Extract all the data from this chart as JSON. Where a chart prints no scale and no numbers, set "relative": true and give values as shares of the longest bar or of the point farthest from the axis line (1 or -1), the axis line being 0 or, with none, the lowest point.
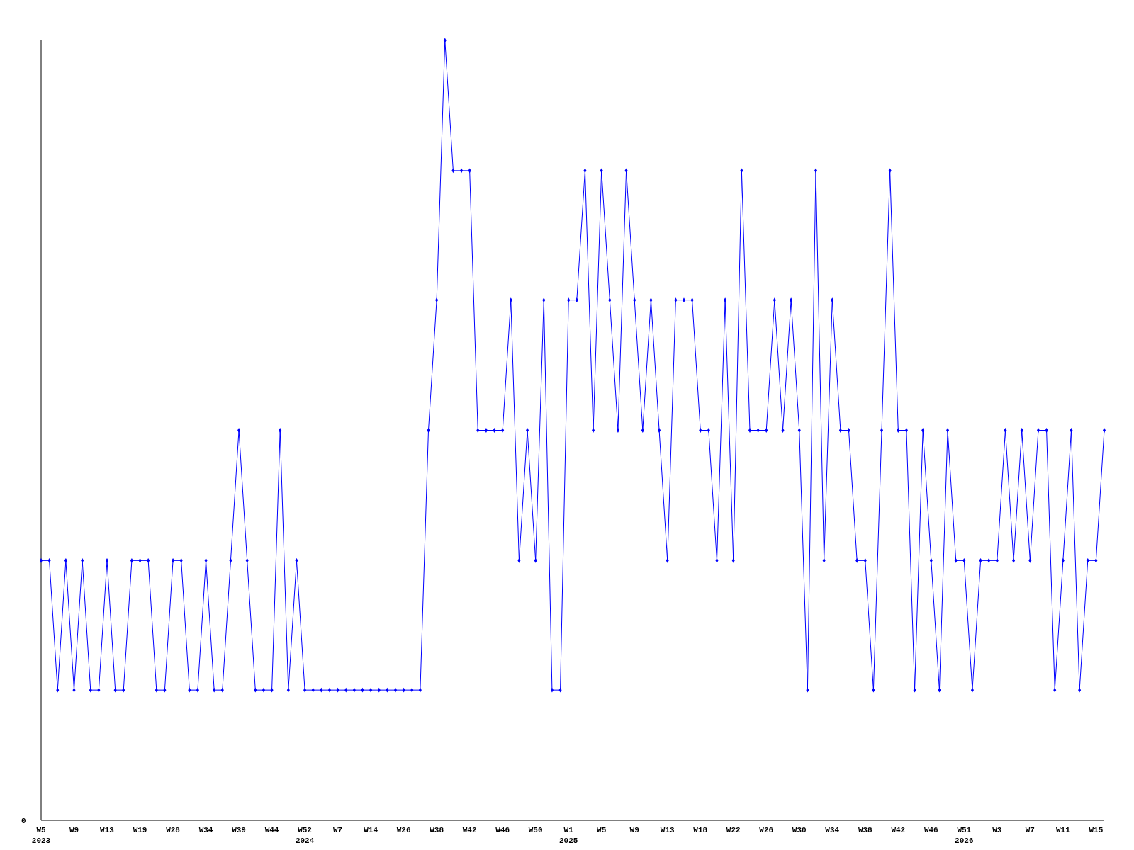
{
  "chart_data": {
    "type": "line",
    "relative": true,
    "marker": "diamond",
    "annotations": [
      "0"
    ],
    "categories": [
      "W5\n2023",
      null,
      null,
      null,
      "W9",
      null,
      null,
      null,
      "W13",
      null,
      null,
      null,
      "W19",
      null,
      null,
      null,
      "W28",
      null,
      null,
      null,
      "W34",
      null,
      null,
      null,
      "W39",
      null,
      null,
      null,
      "W44",
      null,
      null,
      null,
      "W52\n2024",
      null,
      null,
      null,
      "W7",
      null,
      null,
      null,
      "W14",
      null,
      null,
      null,
      "W26",
      null,
      null,
      null,
      "W38",
      null,
      null,
      null,
      "W42",
      null,
      null,
      null,
      "W46",
      null,
      null,
      null,
      "W50",
      null,
      null,
      null,
      "W1\n2025",
      null,
      null,
      null,
      "W5",
      null,
      null,
      null,
      "W9",
      null,
      null,
      null,
      "W13",
      null,
      null,
      null,
      "W18",
      null,
      null,
      null,
      "W22",
      null,
      null,
      null,
      "W26",
      null,
      null,
      null,
      "W30",
      null,
      null,
      null,
      "W34",
      null,
      null,
      null,
      "W38",
      null,
      null,
      null,
      "W42",
      null,
      null,
      null,
      "W46",
      null,
      null,
      null,
      "W51\n2026",
      null,
      null,
      null,
      "W3",
      null,
      null,
      null,
      "W7",
      null,
      null,
      null,
      "W11",
      null,
      null,
      null,
      "W15",
      null
    ],
    "series": [
      {
        "color": "#0000ff",
        "values": [
          0.333,
          0.333,
          0.167,
          0.333,
          0.167,
          0.333,
          0.167,
          0.167,
          0.333,
          0.167,
          0.167,
          0.333,
          0.333,
          0.333,
          0.167,
          0.167,
          0.333,
          0.333,
          0.167,
          0.167,
          0.333,
          0.167,
          0.167,
          0.333,
          0.5,
          0.333,
          0.167,
          0.167,
          0.167,
          0.5,
          0.167,
          0.333,
          0.167,
          0.167,
          0.167,
          0.167,
          0.167,
          0.167,
          0.167,
          0.167,
          0.167,
          0.167,
          0.167,
          0.167,
          0.167,
          0.167,
          0.167,
          0.5,
          0.667,
          1,
          0.833,
          0.833,
          0.833,
          0.5,
          0.5,
          0.5,
          0.5,
          0.667,
          0.333,
          0.5,
          0.333,
          0.667,
          0.167,
          0.167,
          0.667,
          0.667,
          0.833,
          0.5,
          0.833,
          0.667,
          0.5,
          0.833,
          0.667,
          0.5,
          0.667,
          0.5,
          0.333,
          0.667,
          0.667,
          0.667,
          0.5,
          0.5,
          0.333,
          0.667,
          0.333,
          0.833,
          0.5,
          0.5,
          0.5,
          0.667,
          0.5,
          0.667,
          0.5,
          0.167,
          0.833,
          0.333,
          0.667,
          0.5,
          0.5,
          0.333,
          0.333,
          0.167,
          0.5,
          0.833,
          0.5,
          0.5,
          0.167,
          0.5,
          0.333,
          0.167,
          0.5,
          0.333,
          0.333,
          0.167,
          0.333,
          0.333,
          0.333,
          0.5,
          0.333,
          0.5,
          0.333,
          0.5,
          0.5,
          0.167,
          0.333,
          0.5,
          0.167,
          0.333,
          0.333,
          0.5
        ]
      }
    ]
  }
}
